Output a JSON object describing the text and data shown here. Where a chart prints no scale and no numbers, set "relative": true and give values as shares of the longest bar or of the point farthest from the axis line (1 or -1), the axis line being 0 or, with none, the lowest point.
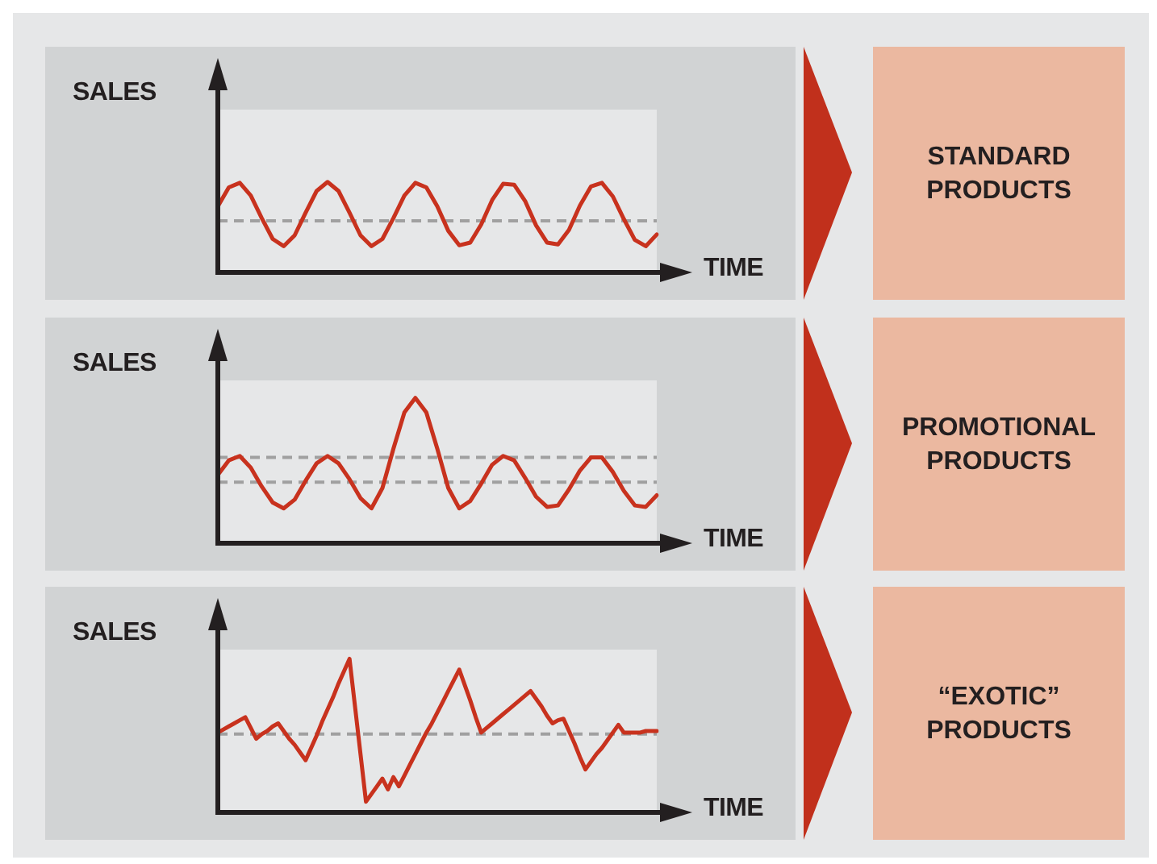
{
  "chart_data": [
    {
      "type": "line",
      "relative": true,
      "ylabel": "SALES",
      "xlabel": "TIME",
      "annotations": [
        "STANDARD PRODUCTS"
      ],
      "tick_labels": false,
      "legend": false,
      "marker": "none",
      "categories": [
        null,
        null,
        null,
        null,
        null,
        null,
        null,
        null,
        null,
        null,
        null,
        null,
        null,
        null,
        null,
        null,
        null,
        null,
        null,
        null,
        null,
        null,
        null,
        null,
        null,
        null,
        null,
        null,
        null,
        null,
        null,
        null,
        null,
        null,
        null,
        null,
        null,
        null,
        null,
        null,
        null
      ],
      "series": [
        {
          "color": "#c8321e",
          "values": [
            0.73,
            0.94,
            0.99,
            0.85,
            0.6,
            0.37,
            0.29,
            0.41,
            0.66,
            0.9,
            1,
            0.9,
            0.66,
            0.41,
            0.29,
            0.37,
            0.6,
            0.85,
            0.99,
            0.94,
            0.73,
            0.46,
            0.3,
            0.33,
            0.53,
            0.8,
            0.98,
            0.97,
            0.79,
            0.52,
            0.33,
            0.31,
            0.47,
            0.74,
            0.95,
            0.99,
            0.84,
            0.59,
            0.36,
            0.29,
            0.42
          ]
        }
      ],
      "ref_lines": [
        {
          "axis": "y",
          "value": 0.57,
          "color": "#a0a0a0",
          "line_style": "dashed"
        }
      ]
    },
    {
      "type": "line",
      "relative": true,
      "ylabel": "SALES",
      "xlabel": "TIME",
      "annotations": [
        "PROMOTIONAL PRODUCTS"
      ],
      "tick_labels": false,
      "legend": false,
      "marker": "none",
      "categories": [
        null,
        null,
        null,
        null,
        null,
        null,
        null,
        null,
        null,
        null,
        null,
        null,
        null,
        null,
        null,
        null,
        null,
        null,
        null,
        null,
        null,
        null,
        null,
        null,
        null,
        null,
        null,
        null,
        null,
        null,
        null,
        null,
        null,
        null,
        null,
        null,
        null,
        null,
        null,
        null,
        null
      ],
      "series": [
        {
          "color": "#c8321e",
          "values": [
            0.47,
            0.57,
            0.6,
            0.52,
            0.39,
            0.28,
            0.24,
            0.3,
            0.43,
            0.55,
            0.6,
            0.55,
            0.44,
            0.31,
            0.24,
            0.38,
            0.65,
            0.9,
            1,
            0.9,
            0.65,
            0.38,
            0.24,
            0.29,
            0.41,
            0.54,
            0.6,
            0.57,
            0.45,
            0.32,
            0.25,
            0.26,
            0.37,
            0.5,
            0.59,
            0.59,
            0.49,
            0.36,
            0.26,
            0.25,
            0.33
          ]
        }
      ],
      "ref_lines": [
        {
          "axis": "y",
          "value": 0.59,
          "color": "#a0a0a0",
          "line_style": "dashed"
        },
        {
          "axis": "y",
          "value": 0.42,
          "color": "#a0a0a0",
          "line_style": "dashed"
        }
      ]
    },
    {
      "type": "line",
      "relative": true,
      "ylabel": "SALES",
      "xlabel": "TIME",
      "annotations": [
        "“EXOTIC” PRODUCTS"
      ],
      "tick_labels": false,
      "legend": false,
      "marker": "none",
      "categories": [
        null,
        null,
        null,
        null,
        null,
        null,
        null,
        null,
        null,
        null,
        null,
        null,
        null,
        null,
        null,
        null,
        null,
        null,
        null,
        null,
        null,
        null,
        null,
        null,
        null,
        null,
        null,
        null,
        null,
        null,
        null,
        null,
        null,
        null,
        null,
        null,
        null,
        null,
        null,
        null,
        null,
        null,
        null,
        null,
        null,
        null,
        null,
        null,
        null,
        null,
        null,
        null,
        null,
        null,
        null,
        null,
        null,
        null,
        null,
        null,
        null,
        null,
        null,
        null,
        null,
        null,
        null,
        null,
        null,
        null,
        null,
        null,
        null,
        null,
        null,
        null,
        null,
        null,
        null,
        null,
        null
      ],
      "series": [
        {
          "color": "#c8321e",
          "values": [
            0.52,
            0.54,
            0.56,
            0.58,
            0.6,
            0.62,
            0.55,
            0.48,
            0.51,
            0.53,
            0.56,
            0.58,
            0.53,
            0.48,
            0.44,
            0.39,
            0.34,
            0.42,
            0.5,
            0.59,
            0.67,
            0.75,
            0.84,
            0.92,
            1,
            0.69,
            0.38,
            0.07,
            0.12,
            0.17,
            0.22,
            0.15,
            0.23,
            0.17,
            0.24,
            0.31,
            0.38,
            0.45,
            0.52,
            0.58,
            0.65,
            0.72,
            0.79,
            0.86,
            0.93,
            0.83,
            0.73,
            0.62,
            0.52,
            0.55,
            0.58,
            0.61,
            0.64,
            0.67,
            0.7,
            0.73,
            0.76,
            0.79,
            0.74,
            0.69,
            0.63,
            0.58,
            0.6,
            0.61,
            0.53,
            0.45,
            0.36,
            0.28,
            0.33,
            0.38,
            0.42,
            0.47,
            0.52,
            0.57,
            0.52,
            0.52,
            0.52,
            0.52,
            0.53,
            0.53,
            0.53
          ]
        }
      ],
      "ref_lines": [
        {
          "axis": "y",
          "value": 0.51,
          "color": "#a0a0a0",
          "line_style": "dashed"
        }
      ]
    }
  ]
}
